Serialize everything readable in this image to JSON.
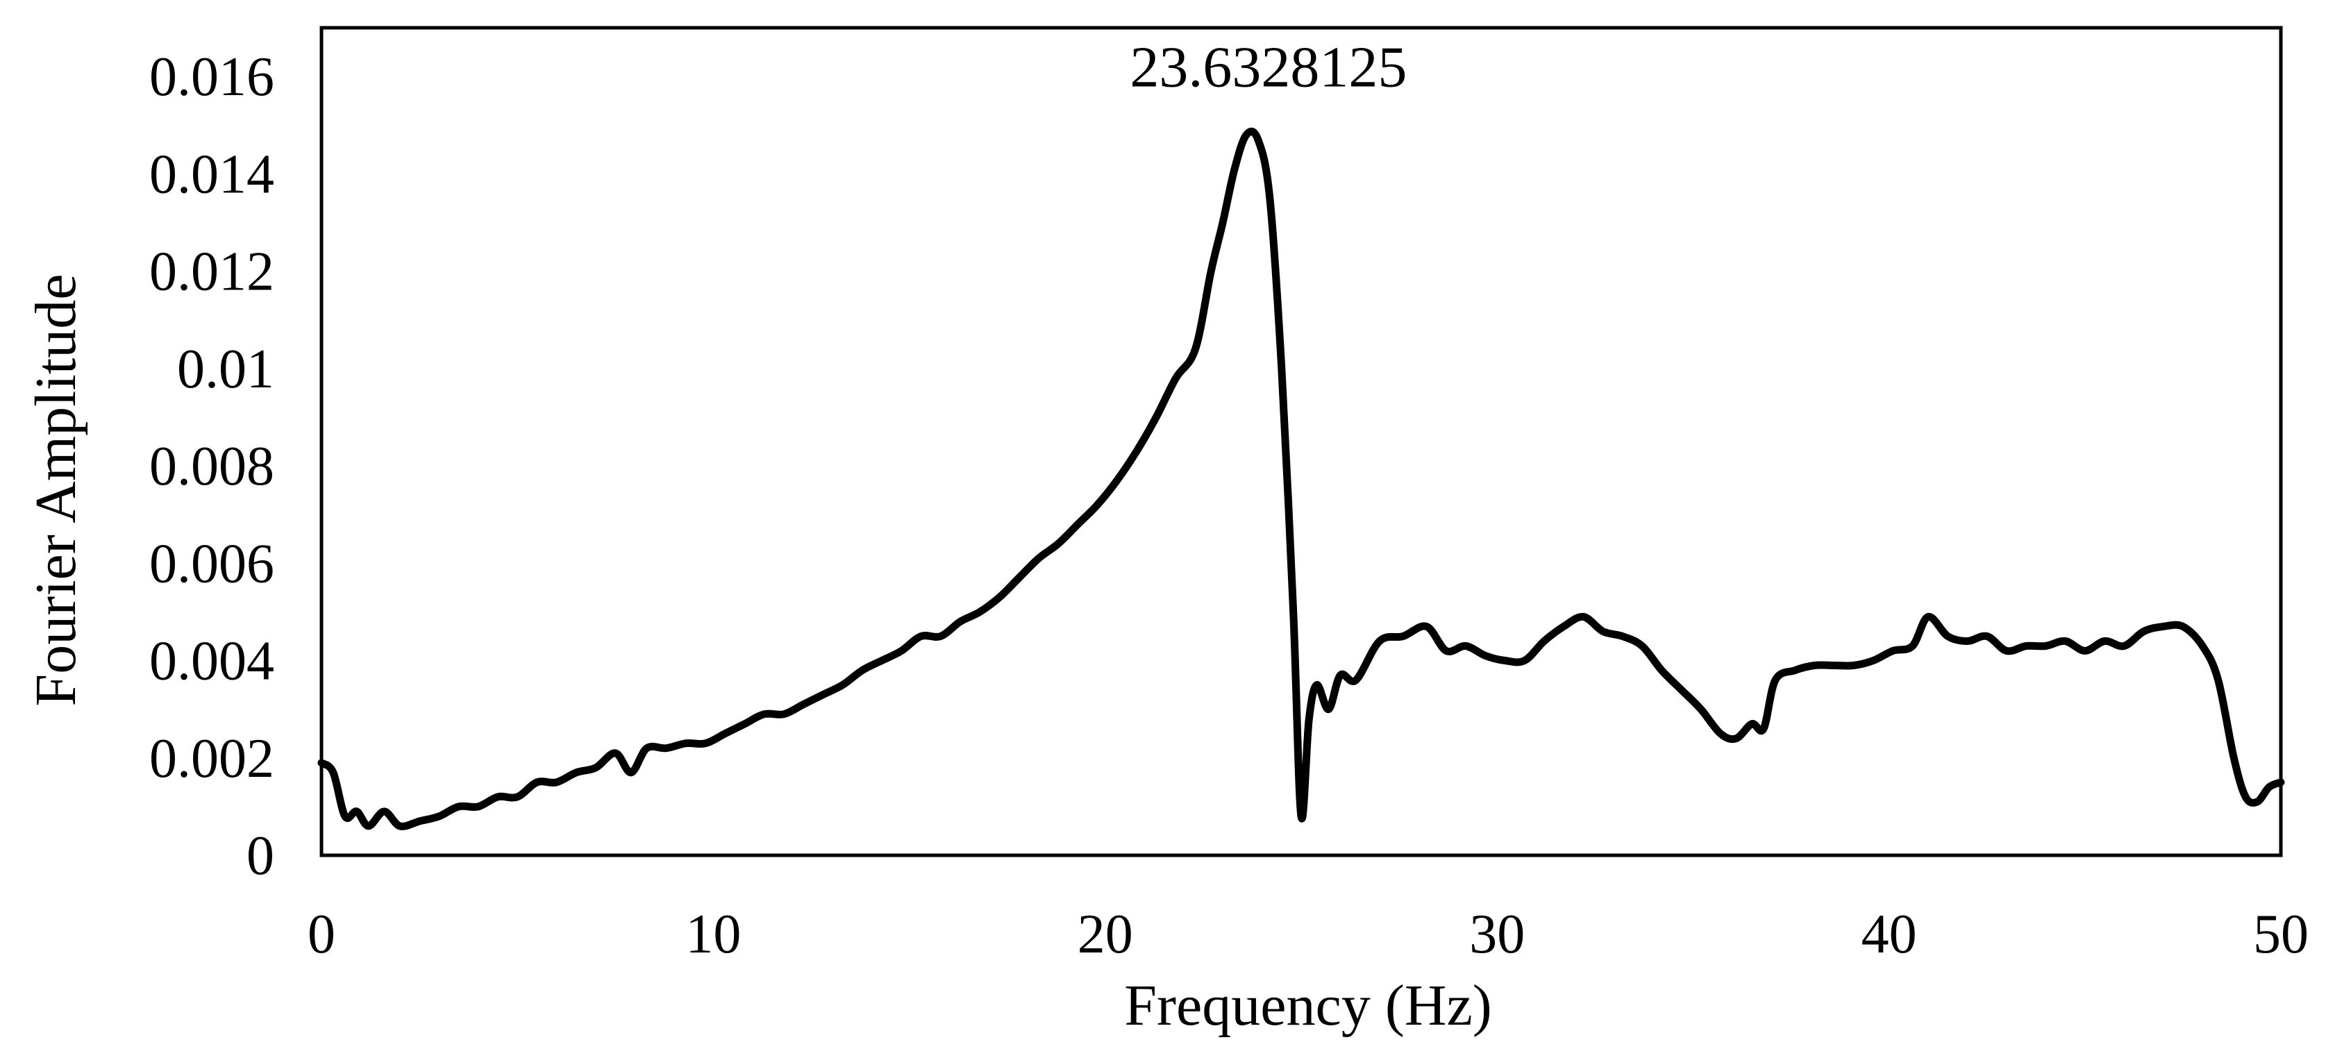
{
  "chart_data": {
    "type": "line",
    "title": "",
    "xlabel": "Frequency (Hz)",
    "ylabel": "Fourier Amplitude",
    "xlim": [
      0,
      50
    ],
    "ylim": [
      0,
      0.017
    ],
    "grid": false,
    "legend": "none",
    "x_ticks": [
      0,
      10,
      20,
      30,
      40,
      50
    ],
    "x_tick_labels": [
      "0",
      "10",
      "20",
      "30",
      "40",
      "50"
    ],
    "y_ticks": [
      0,
      0.002,
      0.004,
      0.006,
      0.008,
      0.01,
      0.012,
      0.014,
      0.016
    ],
    "y_tick_labels": [
      "0",
      "0.002",
      "0.004",
      "0.006",
      "0.008",
      "0.01",
      "0.012",
      "0.014",
      "0.016"
    ],
    "annotations": [
      {
        "text": "23.6328125",
        "x": 23.6328125,
        "y": 0.0148
      }
    ],
    "series": [
      {
        "color": "#000000",
        "points": [
          [
            0.0,
            0.0019
          ],
          [
            0.3,
            0.0017
          ],
          [
            0.6,
            0.0008
          ],
          [
            0.9,
            0.0009
          ],
          [
            1.2,
            0.0006
          ],
          [
            1.6,
            0.0009
          ],
          [
            2.0,
            0.0006
          ],
          [
            2.5,
            0.0007
          ],
          [
            3.0,
            0.0008
          ],
          [
            3.5,
            0.001
          ],
          [
            4.0,
            0.001
          ],
          [
            4.5,
            0.0012
          ],
          [
            5.0,
            0.0012
          ],
          [
            5.5,
            0.0015
          ],
          [
            6.0,
            0.0015
          ],
          [
            6.5,
            0.0017
          ],
          [
            7.0,
            0.0018
          ],
          [
            7.5,
            0.0021
          ],
          [
            7.9,
            0.0017
          ],
          [
            8.3,
            0.0022
          ],
          [
            8.8,
            0.0022
          ],
          [
            9.3,
            0.0023
          ],
          [
            9.8,
            0.0023
          ],
          [
            10.3,
            0.0025
          ],
          [
            10.8,
            0.0027
          ],
          [
            11.3,
            0.0029
          ],
          [
            11.8,
            0.0029
          ],
          [
            12.3,
            0.0031
          ],
          [
            12.8,
            0.0033
          ],
          [
            13.3,
            0.0035
          ],
          [
            13.8,
            0.0038
          ],
          [
            14.3,
            0.004
          ],
          [
            14.8,
            0.0042
          ],
          [
            15.3,
            0.0045
          ],
          [
            15.8,
            0.0045
          ],
          [
            16.3,
            0.0048
          ],
          [
            16.8,
            0.005
          ],
          [
            17.3,
            0.0053
          ],
          [
            17.8,
            0.0057
          ],
          [
            18.3,
            0.0061
          ],
          [
            18.8,
            0.0064
          ],
          [
            19.3,
            0.0068
          ],
          [
            19.8,
            0.0072
          ],
          [
            20.3,
            0.0077
          ],
          [
            20.8,
            0.0083
          ],
          [
            21.3,
            0.009
          ],
          [
            21.8,
            0.0098
          ],
          [
            22.3,
            0.0104
          ],
          [
            22.7,
            0.012
          ],
          [
            23.0,
            0.013
          ],
          [
            23.3,
            0.0141
          ],
          [
            23.6,
            0.0148
          ],
          [
            23.9,
            0.0147
          ],
          [
            24.2,
            0.0135
          ],
          [
            24.5,
            0.01
          ],
          [
            24.8,
            0.005
          ],
          [
            25.0,
            0.0008
          ],
          [
            25.2,
            0.0028
          ],
          [
            25.4,
            0.0035
          ],
          [
            25.7,
            0.003
          ],
          [
            26.0,
            0.0037
          ],
          [
            26.4,
            0.0036
          ],
          [
            27.0,
            0.0044
          ],
          [
            27.6,
            0.0045
          ],
          [
            28.2,
            0.0047
          ],
          [
            28.7,
            0.0042
          ],
          [
            29.2,
            0.0043
          ],
          [
            29.7,
            0.0041
          ],
          [
            30.2,
            0.004
          ],
          [
            30.7,
            0.004
          ],
          [
            31.2,
            0.0044
          ],
          [
            31.7,
            0.0047
          ],
          [
            32.2,
            0.0049
          ],
          [
            32.7,
            0.0046
          ],
          [
            33.2,
            0.0045
          ],
          [
            33.7,
            0.0043
          ],
          [
            34.2,
            0.0038
          ],
          [
            34.7,
            0.0034
          ],
          [
            35.2,
            0.003
          ],
          [
            35.7,
            0.0025
          ],
          [
            36.1,
            0.0024
          ],
          [
            36.5,
            0.0027
          ],
          [
            36.8,
            0.0026
          ],
          [
            37.1,
            0.0036
          ],
          [
            37.6,
            0.0038
          ],
          [
            38.1,
            0.0039
          ],
          [
            38.6,
            0.0039
          ],
          [
            39.1,
            0.0039
          ],
          [
            39.6,
            0.004
          ],
          [
            40.1,
            0.0042
          ],
          [
            40.6,
            0.0043
          ],
          [
            41.0,
            0.0049
          ],
          [
            41.5,
            0.0045
          ],
          [
            42.0,
            0.0044
          ],
          [
            42.5,
            0.0045
          ],
          [
            43.0,
            0.0042
          ],
          [
            43.5,
            0.0043
          ],
          [
            44.0,
            0.0043
          ],
          [
            44.5,
            0.0044
          ],
          [
            45.0,
            0.0042
          ],
          [
            45.5,
            0.0044
          ],
          [
            46.0,
            0.0043
          ],
          [
            46.5,
            0.0046
          ],
          [
            47.0,
            0.0047
          ],
          [
            47.5,
            0.0047
          ],
          [
            48.0,
            0.0043
          ],
          [
            48.4,
            0.0036
          ],
          [
            48.8,
            0.002
          ],
          [
            49.1,
            0.0012
          ],
          [
            49.4,
            0.0011
          ],
          [
            49.7,
            0.0014
          ],
          [
            50.0,
            0.0015
          ]
        ]
      }
    ]
  }
}
